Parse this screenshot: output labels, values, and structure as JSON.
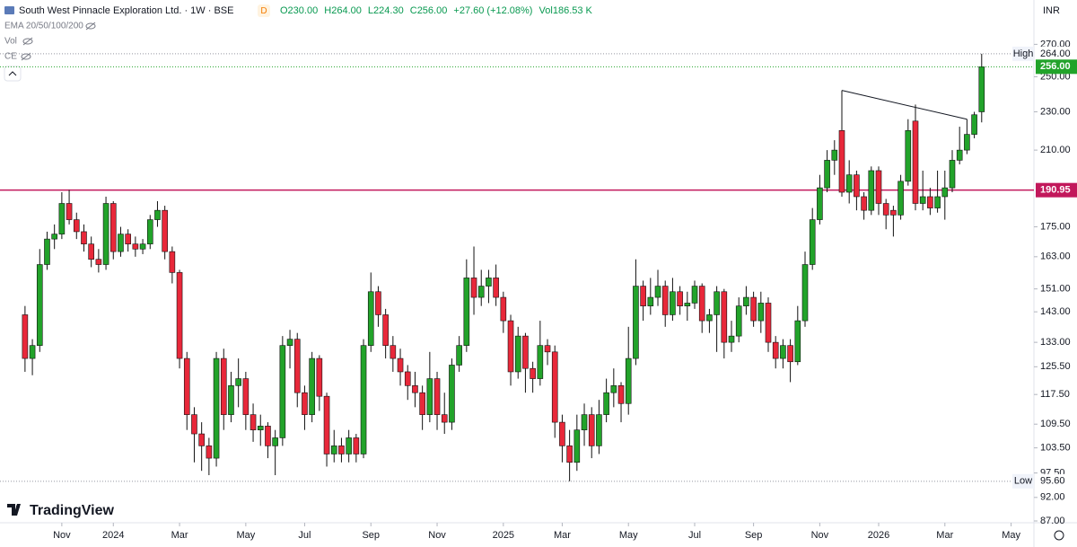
{
  "chart_data": {
    "type": "candlestick",
    "title": "South West Pinnacle Exploration Ltd. · 1W · BSE",
    "badge": "D",
    "ohlc_legend": [
      "O230.00",
      "H264.00",
      "L224.30",
      "C256.00",
      "+27.60 (+12.08%)",
      "Vol186.53 K"
    ],
    "indicators": [
      "EMA 20/50/100/200",
      "Vol",
      "CE"
    ],
    "currency": "INR",
    "brand": "TradingView",
    "log": true,
    "grid": false,
    "up_color": "#22a32a",
    "down_color": "#e8283a",
    "wick_color": "#111111",
    "open": [
      142,
      128,
      132,
      160,
      170,
      172,
      185,
      178,
      173,
      168,
      162,
      160,
      185,
      165,
      172,
      168,
      166,
      168,
      178,
      182,
      165,
      157,
      128,
      112,
      107,
      104,
      101,
      128,
      112,
      120,
      122,
      112,
      108,
      109,
      104,
      106,
      132,
      134,
      118,
      112,
      128,
      117,
      102,
      104,
      102,
      106,
      102,
      132,
      150,
      142,
      132,
      128,
      124,
      120,
      118,
      112,
      122,
      112,
      110,
      126,
      132,
      155,
      148,
      152,
      155,
      148,
      140,
      124,
      135,
      125,
      122,
      132,
      130,
      110,
      104,
      100,
      108,
      112,
      104,
      112,
      118,
      120,
      115,
      128,
      152,
      145,
      148,
      152,
      142,
      150,
      145,
      146,
      152,
      140,
      142,
      150,
      133,
      135,
      145,
      148,
      140,
      146,
      133,
      128,
      132,
      127,
      140,
      160,
      178,
      192,
      205,
      220,
      190,
      198,
      188,
      182,
      200,
      185,
      182,
      180,
      195,
      225,
      185,
      188,
      183,
      188,
      192,
      205,
      210,
      218,
      230
    ],
    "high": [
      145,
      134,
      166,
      173,
      176,
      190,
      191,
      181,
      176,
      171,
      166,
      188,
      186,
      175,
      174,
      171,
      170,
      180,
      186,
      184,
      167,
      158,
      130,
      114,
      110,
      106,
      130,
      131,
      124,
      128,
      124,
      115,
      112,
      110,
      108,
      135,
      137,
      136,
      120,
      130,
      129,
      118,
      108,
      106,
      108,
      107,
      134,
      157,
      152,
      144,
      135,
      131,
      126,
      124,
      120,
      130,
      124,
      118,
      128,
      135,
      162,
      167,
      158,
      158,
      160,
      150,
      142,
      138,
      136,
      127,
      140,
      134,
      132,
      112,
      108,
      112,
      115,
      114,
      116,
      122,
      125,
      121,
      138,
      162,
      154,
      155,
      158,
      154,
      155,
      152,
      150,
      154,
      153,
      144,
      152,
      151,
      140,
      148,
      152,
      150,
      150,
      148,
      135,
      134,
      134,
      145,
      165,
      183,
      198,
      210,
      215,
      242,
      205,
      200,
      190,
      202,
      202,
      187,
      184,
      198,
      226,
      234,
      200,
      192,
      200,
      200,
      210,
      222,
      226,
      230,
      264
    ],
    "low": [
      124,
      123,
      130,
      158,
      166,
      170,
      176,
      170,
      165,
      159,
      157,
      158,
      162,
      163,
      165,
      163,
      164,
      166,
      175,
      162,
      153,
      125,
      108,
      100,
      98,
      97,
      99,
      108,
      110,
      114,
      108,
      105,
      104,
      101,
      97,
      104,
      125,
      114,
      108,
      110,
      113,
      99,
      100,
      100,
      100,
      100,
      101,
      130,
      138,
      128,
      124,
      120,
      116,
      114,
      108,
      110,
      108,
      107,
      108,
      124,
      130,
      142,
      145,
      146,
      145,
      136,
      120,
      122,
      118,
      118,
      120,
      126,
      106,
      100,
      95.6,
      98,
      104,
      101,
      102,
      110,
      114,
      110,
      112,
      126,
      140,
      142,
      145,
      138,
      140,
      142,
      140,
      144,
      136,
      136,
      130,
      128,
      130,
      133,
      142,
      138,
      136,
      130,
      125,
      125,
      121,
      126,
      138,
      158,
      176,
      190,
      198,
      188,
      185,
      182,
      178,
      180,
      180,
      174,
      171,
      178,
      193,
      182,
      182,
      180,
      181,
      178,
      190,
      203,
      208,
      216,
      224.3
    ],
    "close": [
      128,
      132,
      160,
      170,
      172,
      185,
      178,
      173,
      168,
      162,
      160,
      185,
      165,
      172,
      168,
      166,
      168,
      178,
      182,
      165,
      157,
      128,
      112,
      107,
      104,
      101,
      128,
      112,
      120,
      122,
      112,
      108,
      109,
      104,
      106,
      132,
      134,
      118,
      112,
      128,
      117,
      102,
      104,
      102,
      106,
      102,
      132,
      150,
      142,
      132,
      128,
      124,
      120,
      118,
      112,
      122,
      112,
      110,
      126,
      132,
      155,
      148,
      152,
      155,
      148,
      140,
      124,
      135,
      125,
      122,
      132,
      130,
      110,
      104,
      100,
      108,
      112,
      104,
      112,
      118,
      120,
      115,
      128,
      152,
      145,
      148,
      152,
      142,
      150,
      145,
      146,
      152,
      140,
      142,
      150,
      133,
      135,
      145,
      148,
      140,
      146,
      133,
      128,
      132,
      127,
      140,
      160,
      178,
      192,
      205,
      210,
      190,
      198,
      188,
      182,
      200,
      185,
      180,
      180,
      195,
      220,
      185,
      188,
      183,
      188,
      192,
      205,
      210,
      218,
      228.4,
      256
    ],
    "xlim": [
      -3.4,
      137.1
    ],
    "xticks": [
      {
        "value": 5,
        "label": "Nov"
      },
      {
        "value": 12,
        "label": "2024"
      },
      {
        "value": 21,
        "label": "Mar"
      },
      {
        "value": 30,
        "label": "May"
      },
      {
        "value": 38,
        "label": "Jul"
      },
      {
        "value": 47,
        "label": "Sep"
      },
      {
        "value": 56,
        "label": "Nov"
      },
      {
        "value": 65,
        "label": "2025"
      },
      {
        "value": 73,
        "label": "Mar"
      },
      {
        "value": 82,
        "label": "May"
      },
      {
        "value": 91,
        "label": "Jul"
      },
      {
        "value": 99,
        "label": "Sep"
      },
      {
        "value": 108,
        "label": "Nov"
      },
      {
        "value": 116,
        "label": "2026"
      },
      {
        "value": 125,
        "label": "Mar"
      },
      {
        "value": 134,
        "label": "May"
      }
    ],
    "ylim": [
      87,
      300
    ],
    "yticks": [
      {
        "value": 270,
        "label": "270.00"
      },
      {
        "value": 250,
        "label": "250.00"
      },
      {
        "value": 230,
        "label": "230.00"
      },
      {
        "value": 210,
        "label": "210.00"
      },
      {
        "value": 175,
        "label": "175.00"
      },
      {
        "value": 163,
        "label": "163.00"
      },
      {
        "value": 151,
        "label": "151.00"
      },
      {
        "value": 143,
        "label": "143.00"
      },
      {
        "value": 133,
        "label": "133.00"
      },
      {
        "value": 125.5,
        "label": "125.50"
      },
      {
        "value": 117.5,
        "label": "117.50"
      },
      {
        "value": 109.5,
        "label": "109.50"
      },
      {
        "value": 103.5,
        "label": "103.50"
      },
      {
        "value": 97.5,
        "label": "97.50"
      },
      {
        "value": 92,
        "label": "92.00"
      },
      {
        "value": 87,
        "label": "87.00"
      }
    ],
    "price_line": {
      "value": 190.95,
      "color": "#c2185b"
    },
    "markers": [
      {
        "name": "High",
        "value": 264,
        "label": "264.00"
      },
      {
        "name": "Low",
        "value": 95.6,
        "label": "95.60"
      }
    ],
    "last_price": {
      "value": 256,
      "label": "256.00"
    }
  }
}
